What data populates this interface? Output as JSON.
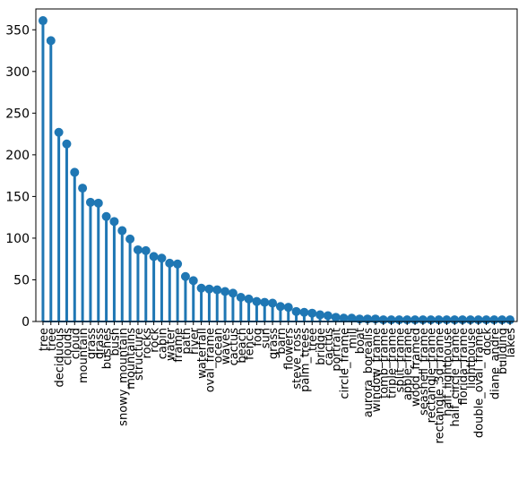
{
  "chart_data": {
    "type": "lollipop",
    "title": "",
    "xlabel": "",
    "ylabel": "",
    "ylim": [
      0,
      375
    ],
    "yticks": [
      0,
      50,
      100,
      150,
      200,
      250,
      300,
      350
    ],
    "grid": false,
    "color": "#1f77b4",
    "categories": [
      "tree",
      "tree",
      "deciduous",
      "clouds",
      "cloud",
      "mountain",
      "grass",
      "grass",
      "bushes",
      "bush",
      "snowy_mountain",
      "mountains",
      "structure",
      "rocks",
      "rock",
      "cabin",
      "water",
      "frame",
      "path",
      "river",
      "waterfall",
      "oval_frame",
      "ocean",
      "waves",
      "cactus",
      "beach",
      "fence",
      "fog",
      "sun",
      "grass",
      "barn",
      "flowers",
      "steve_ross",
      "palm_trees",
      "tree",
      "bridge",
      "cactus",
      "portrait",
      "circle_frame",
      "mill",
      "boat",
      "aurora_borealis",
      "window_frame",
      "tomb_frame",
      "triple_frame",
      "split_frame",
      "apple_frame",
      "wood_framed",
      "seashell_frame",
      "rectangle_frame",
      "rectangle_3d_frame",
      "half_lighthouse",
      "half_circle_frame",
      "florida_frame",
      "lighthouse",
      "double_oval_frame",
      "dock",
      "diane_andre",
      "building",
      "lakes"
    ],
    "values": [
      361,
      337,
      227,
      213,
      179,
      160,
      143,
      142,
      126,
      120,
      109,
      99,
      86,
      85,
      78,
      76,
      70,
      69,
      54,
      49,
      40,
      39,
      38,
      36,
      34,
      29,
      27,
      24,
      23,
      22,
      18,
      17,
      12,
      11,
      10,
      8,
      7,
      5,
      4,
      4,
      3,
      3,
      3,
      2,
      2,
      2,
      2,
      2,
      2,
      2,
      2,
      2,
      2,
      2,
      2,
      2,
      2,
      2,
      2,
      2
    ]
  }
}
